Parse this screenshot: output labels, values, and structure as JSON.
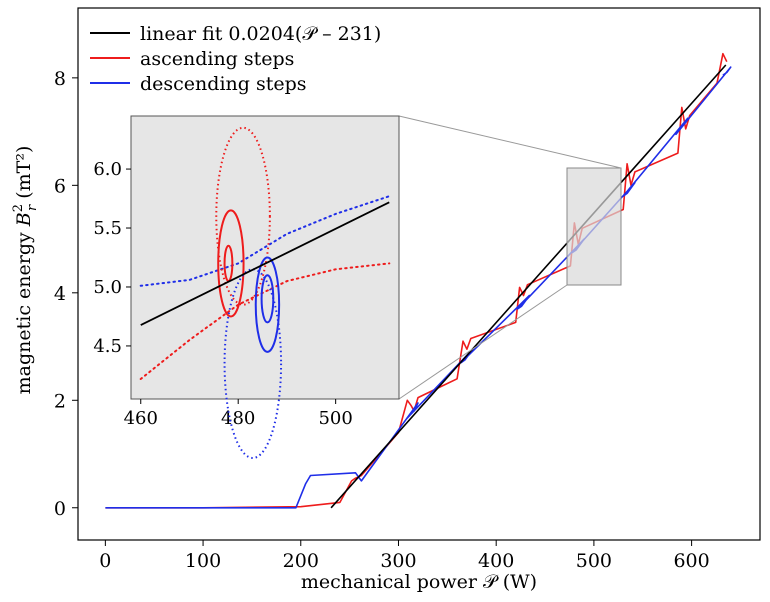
{
  "chart_data": {
    "type": "line",
    "title": "",
    "xlabel": "mechanical power 𝒫 (W)",
    "ylabel_prefix": "magnetic energy ",
    "ylabel_symbol": "B",
    "ylabel_sub": "r",
    "ylabel_sup": "2",
    "ylabel_unit": " (mT²)",
    "xlim": [
      -28,
      670
    ],
    "ylim": [
      -0.6,
      9.3
    ],
    "xticks": [
      0,
      100,
      200,
      300,
      400,
      500,
      600
    ],
    "yticks": [
      0,
      2,
      4,
      6,
      8
    ],
    "grid": false,
    "legend_position": "top-left",
    "fit": {
      "slope": 0.0204,
      "intercept_x": 231,
      "x_start": 231,
      "x_end": 635
    },
    "series": [
      {
        "name": "linear fit 0.0204(𝒫 – 231)",
        "color": "#000000",
        "x": [
          231,
          635
        ],
        "y": [
          0.0,
          8.24
        ]
      },
      {
        "name": "ascending steps",
        "color": "#ee1c1c",
        "x": [
          0,
          100,
          200,
          240,
          252,
          256,
          262,
          300,
          309,
          313,
          316,
          320,
          360,
          366,
          370,
          374,
          420,
          424,
          428,
          432,
          476,
          480,
          484,
          488,
          530,
          534,
          538,
          542,
          586,
          590,
          594,
          598,
          626,
          632,
          636
        ],
        "y": [
          0.0,
          0.0,
          0.02,
          0.1,
          0.5,
          0.55,
          0.6,
          1.4,
          2.0,
          1.9,
          1.8,
          2.05,
          2.4,
          3.1,
          2.95,
          3.15,
          3.45,
          4.1,
          3.95,
          4.15,
          4.5,
          5.3,
          4.9,
          5.2,
          5.55,
          6.4,
          6.0,
          6.25,
          6.6,
          7.45,
          7.05,
          7.3,
          7.9,
          8.45,
          8.3
        ]
      },
      {
        "name": "descending steps",
        "color": "#1f2ee8",
        "x": [
          0,
          100,
          195,
          205,
          210,
          256,
          262,
          320,
          316,
          312,
          308,
          376,
          372,
          368,
          364,
          434,
          430,
          426,
          422,
          490,
          486,
          482,
          478,
          542,
          538,
          534,
          530,
          596,
          592,
          588,
          584,
          640,
          636,
          632
        ],
        "y": [
          0.0,
          0.0,
          0.0,
          0.45,
          0.6,
          0.65,
          0.5,
          1.95,
          1.8,
          1.75,
          1.65,
          2.95,
          2.85,
          2.75,
          2.7,
          3.95,
          3.85,
          3.75,
          3.7,
          5.0,
          4.9,
          4.8,
          4.75,
          6.05,
          5.95,
          5.85,
          5.8,
          7.25,
          7.15,
          7.05,
          6.95,
          8.2,
          8.1,
          8.05
        ]
      }
    ],
    "inset": {
      "xlim": [
        458,
        513
      ],
      "ylim": [
        4.05,
        6.45
      ],
      "xticks": [
        460,
        480,
        500
      ],
      "yticks": [
        4.5,
        5.0,
        5.5,
        6.0
      ],
      "background": "#e6e6e6",
      "fit_line": {
        "x": [
          460,
          511
        ],
        "y": [
          4.677,
          5.718
        ]
      },
      "red_dotted_x": [
        460,
        470,
        480,
        490,
        500,
        511
      ],
      "red_dotted_y": [
        4.22,
        4.55,
        4.85,
        5.05,
        5.15,
        5.2
      ],
      "blue_dotted_x": [
        460,
        470,
        480,
        490,
        500,
        511
      ],
      "blue_dotted_y": [
        5.01,
        5.06,
        5.2,
        5.45,
        5.62,
        5.77
      ]
    }
  }
}
